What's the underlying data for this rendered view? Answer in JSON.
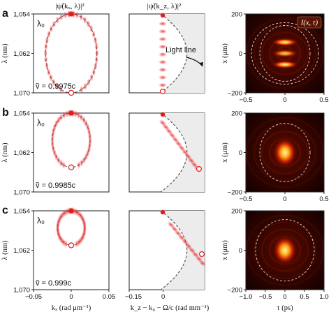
{
  "figure": {
    "rows": [
      {
        "panel_label": "a",
        "mode_label": "λ₀",
        "velocity_label": "ṽ = 0.9975c",
        "light_line_label": "Light line",
        "ellipse": {
          "kx_halfwidth": 0.034,
          "lambda_top": 1054.0,
          "lambda_bottom": 1070.0
        },
        "solid_marker": {
          "kx": 0.0,
          "lambda": 1054.0
        },
        "open_marker": {
          "kx": 0.0,
          "lambda": 1070.0
        },
        "right_x_ticks": [
          "−0.5",
          "0",
          "0.5"
        ]
      },
      {
        "panel_label": "b",
        "mode_label": "λ₀",
        "velocity_label": "ṽ = 0.9985c",
        "ellipse": {
          "kx_halfwidth": 0.025,
          "lambda_top": 1054.0,
          "lambda_bottom": 1065.0
        },
        "solid_marker": {
          "kx": 0.0,
          "lambda": 1054.0
        },
        "open_marker": {
          "kx": 0.0,
          "lambda": 1065.0
        },
        "right_x_ticks": [
          "−0.5",
          "0",
          "0.5"
        ]
      },
      {
        "panel_label": "c",
        "mode_label": "λ₀",
        "velocity_label": "ṽ = 0.999c",
        "ellipse": {
          "kx_halfwidth": 0.018,
          "lambda_top": 1054.0,
          "lambda_bottom": 1061.0
        },
        "solid_marker": {
          "kx": 0.0,
          "lambda": 1054.0
        },
        "open_marker": {
          "kx": 0.0,
          "lambda": 1061.0
        },
        "right_x_ticks": [
          "−1.0",
          "−0.5",
          "0",
          "0.5",
          "1.0"
        ]
      }
    ],
    "col_titles": {
      "left": "|ψ̃(kₓ, λ)|²",
      "mid": "|ψ̃(k_z, λ)|²",
      "right_inset": "I(x, τ)"
    },
    "axes": {
      "left_ylabel": "λ (nm)",
      "left_yticks": [
        "1,054",
        "1,062",
        "1,070"
      ],
      "left_xticks": [
        "−0.05",
        "0",
        "0.05"
      ],
      "left_xlabel": "kₓ (rad μm⁻¹)",
      "mid_xticks": [
        "−0.15",
        "0"
      ],
      "mid_xlabel": "k_z − k₀ − Ω/c (rad mm⁻¹)",
      "right_ylabel": "x (μm)",
      "right_yticks": [
        "200",
        "0",
        "−200"
      ],
      "right_xlabel": "τ (ps)"
    },
    "colors": {
      "marker_red": "#e41b1b",
      "spectrum_red": "#e8282a",
      "dashed_curve": "#555555",
      "light_fill": "#ececec",
      "map_dark": "#140000",
      "map_bright": "#ffe06a"
    }
  },
  "chart_data": [
    {
      "type": "line",
      "panel": "a-left",
      "xlabel": "kₓ (rad μm⁻¹)",
      "ylabel": "λ (nm)",
      "xlim": [
        -0.05,
        0.05
      ],
      "ylim": [
        1054,
        1070
      ],
      "series": [
        {
          "values": [
            [
              -0.034,
              1062
            ],
            [
              0,
              1054
            ],
            [
              0.034,
              1062
            ],
            [
              0,
              1070
            ]
          ]
        }
      ]
    },
    {
      "type": "line",
      "panel": "b-left",
      "xlabel": "kₓ (rad μm⁻¹)",
      "ylabel": "λ (nm)",
      "xlim": [
        -0.05,
        0.05
      ],
      "ylim": [
        1054,
        1070
      ],
      "series": [
        {
          "values": [
            [
              -0.025,
              1059.5
            ],
            [
              0,
              1054
            ],
            [
              0.025,
              1059.5
            ],
            [
              0,
              1065
            ]
          ]
        }
      ]
    },
    {
      "type": "line",
      "panel": "c-left",
      "xlabel": "kₓ (rad μm⁻¹)",
      "ylabel": "λ (nm)",
      "xlim": [
        -0.05,
        0.05
      ],
      "ylim": [
        1054,
        1070
      ],
      "series": [
        {
          "values": [
            [
              -0.018,
              1057.5
            ],
            [
              0,
              1054
            ],
            [
              0.018,
              1057.5
            ],
            [
              0,
              1061
            ]
          ]
        }
      ]
    },
    {
      "type": "heatmap",
      "panel": "right",
      "xlabel": "τ (ps)",
      "ylabel": "x (μm)",
      "ylim": [
        -200,
        200
      ],
      "xlim_rows": [
        [
          -0.5,
          0.5
        ],
        [
          -0.5,
          0.5
        ],
        [
          -1.0,
          1.0
        ]
      ]
    }
  ]
}
